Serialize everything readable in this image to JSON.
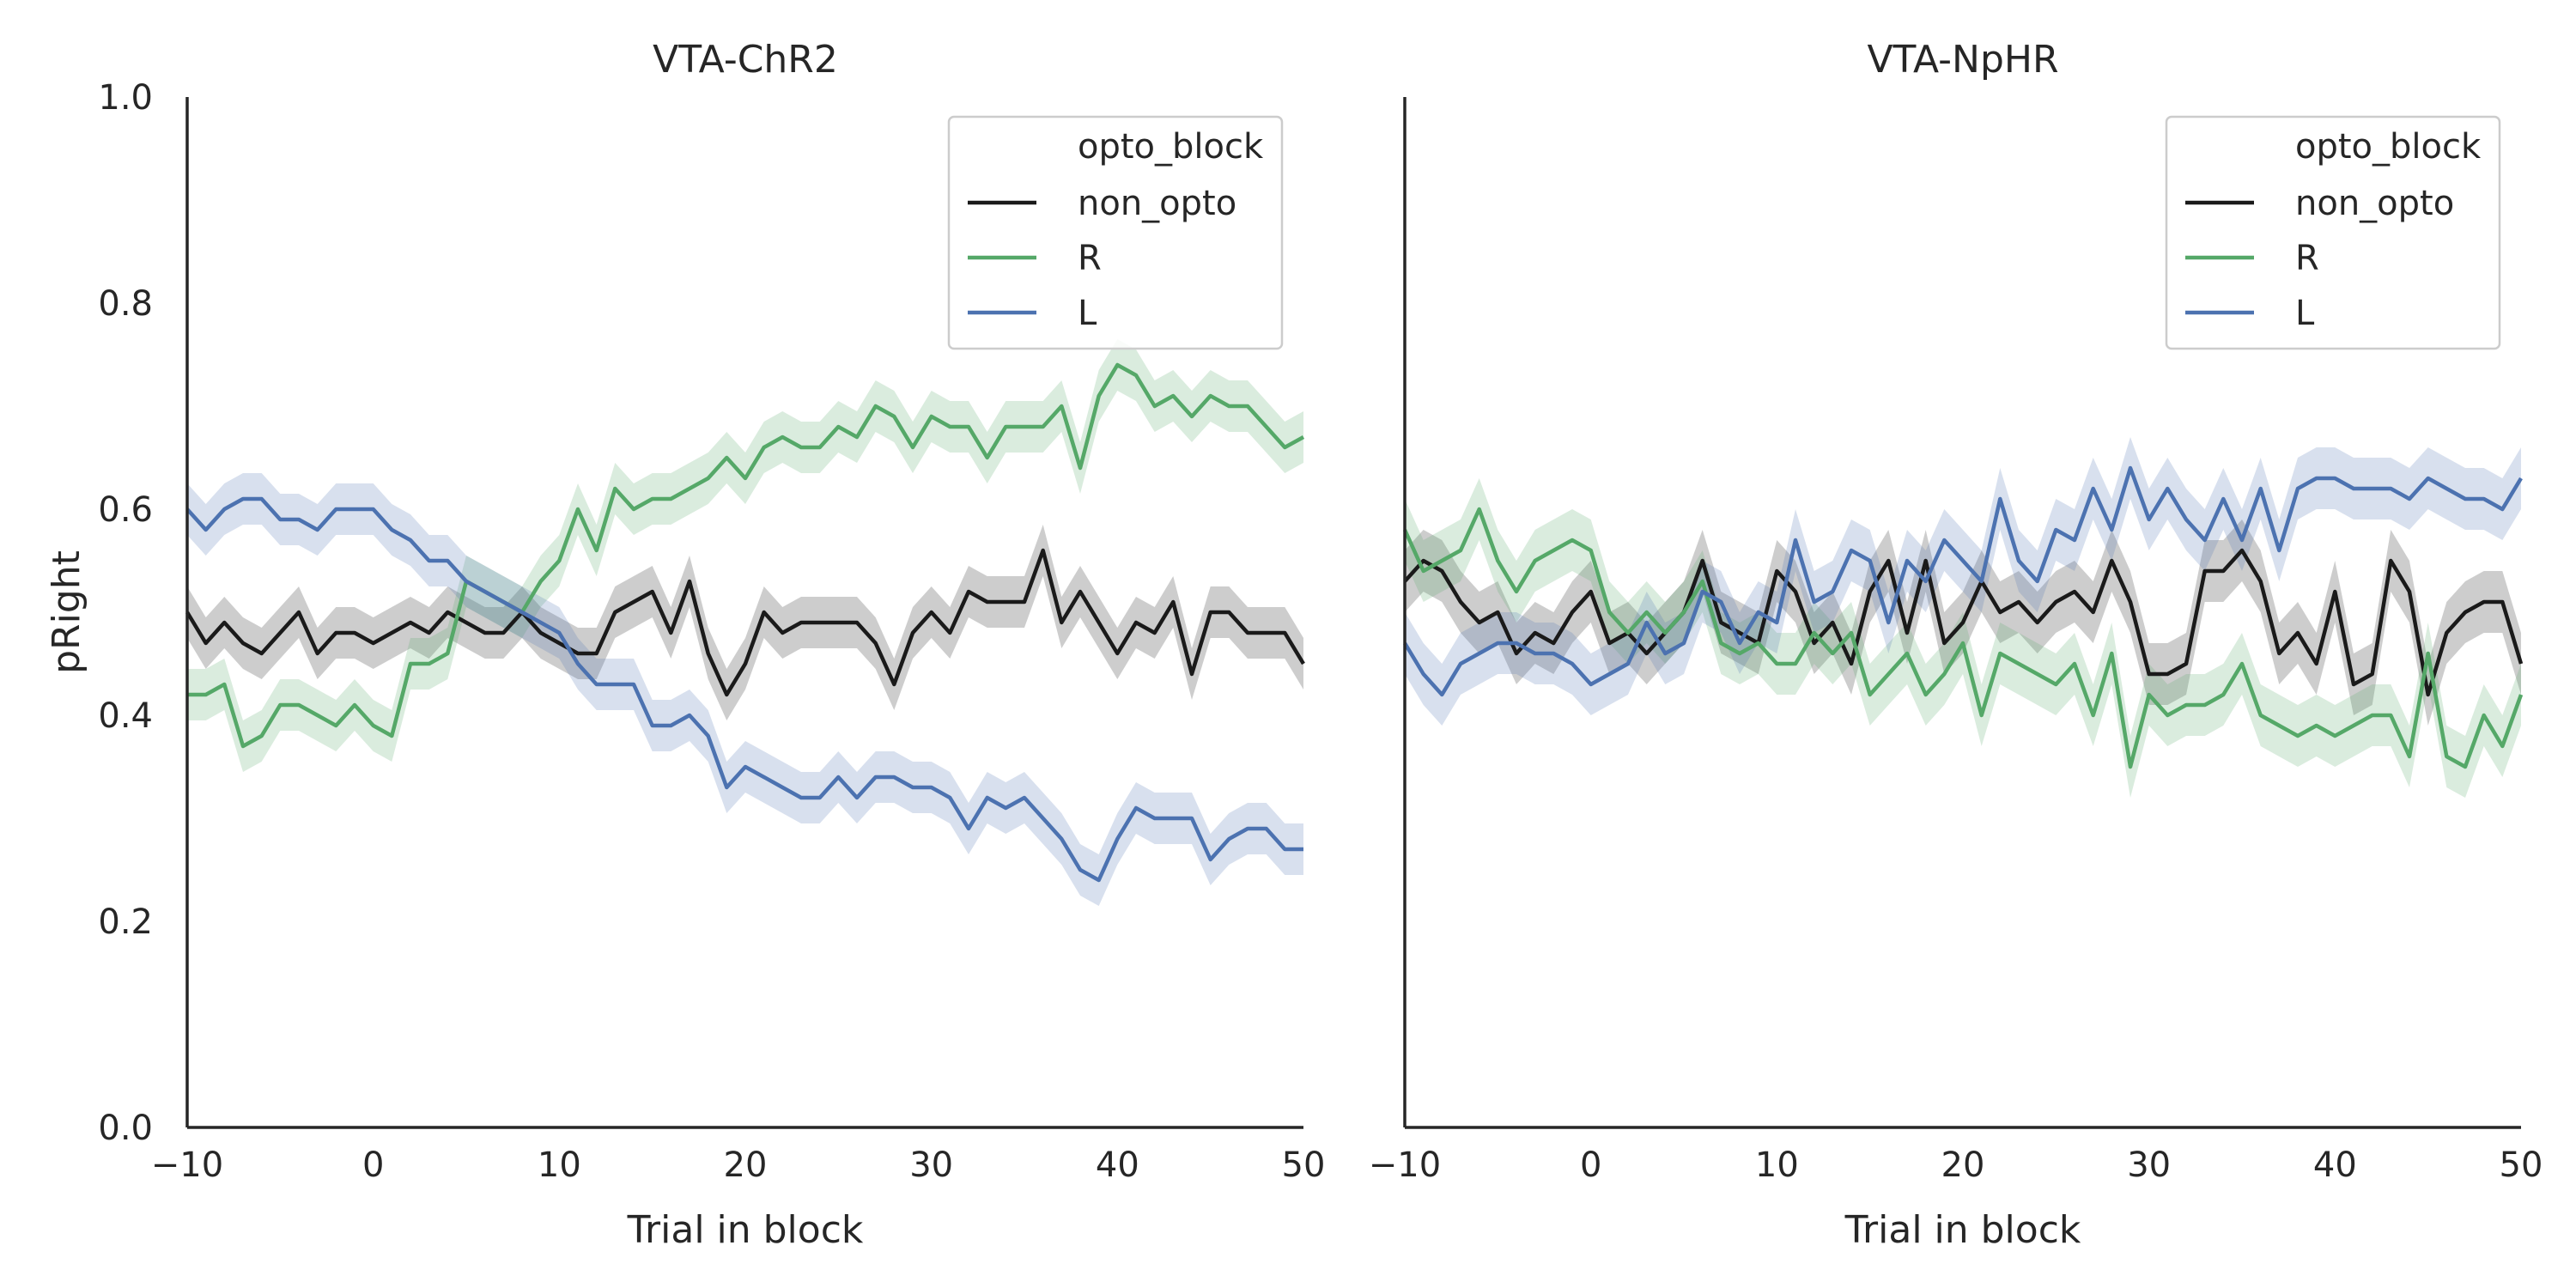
{
  "chart_data": [
    {
      "type": "line",
      "title": "VTA-ChR2",
      "xlabel": "Trial in block",
      "ylabel": "pRight",
      "xlim": [
        -10,
        50
      ],
      "ylim": [
        0,
        1
      ],
      "xticks": [
        "−10",
        "0",
        "10",
        "20",
        "30",
        "40",
        "50"
      ],
      "yticks": [
        "0.0",
        "0.2",
        "0.4",
        "0.6",
        "0.8",
        "1.0"
      ],
      "grid": false,
      "legend": {
        "title": "opto_block",
        "position": "top-right"
      },
      "x": [
        -10,
        -9,
        -8,
        -7,
        -6,
        -5,
        -4,
        -3,
        -2,
        -1,
        0,
        1,
        2,
        3,
        4,
        5,
        6,
        7,
        8,
        9,
        10,
        11,
        12,
        13,
        14,
        15,
        16,
        17,
        18,
        19,
        20,
        21,
        22,
        23,
        24,
        25,
        26,
        27,
        28,
        29,
        30,
        31,
        32,
        33,
        34,
        35,
        36,
        37,
        38,
        39,
        40,
        41,
        42,
        43,
        44,
        45,
        46,
        47,
        48,
        49,
        50
      ],
      "series": [
        {
          "name": "non_opto",
          "color": "#1a1a1a",
          "band": 0.025,
          "values": [
            0.5,
            0.47,
            0.49,
            0.47,
            0.46,
            0.48,
            0.5,
            0.46,
            0.48,
            0.48,
            0.47,
            0.48,
            0.49,
            0.48,
            0.5,
            0.49,
            0.48,
            0.48,
            0.5,
            0.48,
            0.47,
            0.46,
            0.46,
            0.5,
            0.51,
            0.52,
            0.48,
            0.53,
            0.46,
            0.42,
            0.45,
            0.5,
            0.48,
            0.49,
            0.49,
            0.49,
            0.49,
            0.47,
            0.43,
            0.48,
            0.5,
            0.48,
            0.52,
            0.51,
            0.51,
            0.51,
            0.56,
            0.49,
            0.52,
            0.49,
            0.46,
            0.49,
            0.48,
            0.51,
            0.44,
            0.5,
            0.5,
            0.48,
            0.48,
            0.48,
            0.45
          ]
        },
        {
          "name": "R",
          "color": "#55a868",
          "band": 0.025,
          "values": [
            0.42,
            0.42,
            0.43,
            0.37,
            0.38,
            0.41,
            0.41,
            0.4,
            0.39,
            0.41,
            0.39,
            0.38,
            0.45,
            0.45,
            0.46,
            0.53,
            0.52,
            0.51,
            0.5,
            0.53,
            0.55,
            0.6,
            0.56,
            0.62,
            0.6,
            0.61,
            0.61,
            0.62,
            0.63,
            0.65,
            0.63,
            0.66,
            0.67,
            0.66,
            0.66,
            0.68,
            0.67,
            0.7,
            0.69,
            0.66,
            0.69,
            0.68,
            0.68,
            0.65,
            0.68,
            0.68,
            0.68,
            0.7,
            0.64,
            0.71,
            0.74,
            0.73,
            0.7,
            0.71,
            0.69,
            0.71,
            0.7,
            0.7,
            0.68,
            0.66,
            0.67
          ]
        },
        {
          "name": "L",
          "color": "#4c72b0",
          "band": 0.025,
          "values": [
            0.6,
            0.58,
            0.6,
            0.61,
            0.61,
            0.59,
            0.59,
            0.58,
            0.6,
            0.6,
            0.6,
            0.58,
            0.57,
            0.55,
            0.55,
            0.53,
            0.52,
            0.51,
            0.5,
            0.49,
            0.48,
            0.45,
            0.43,
            0.43,
            0.43,
            0.39,
            0.39,
            0.4,
            0.38,
            0.33,
            0.35,
            0.34,
            0.33,
            0.32,
            0.32,
            0.34,
            0.32,
            0.34,
            0.34,
            0.33,
            0.33,
            0.32,
            0.29,
            0.32,
            0.31,
            0.32,
            0.3,
            0.28,
            0.25,
            0.24,
            0.28,
            0.31,
            0.3,
            0.3,
            0.3,
            0.26,
            0.28,
            0.29,
            0.29,
            0.27,
            0.27
          ]
        }
      ]
    },
    {
      "type": "line",
      "title": "VTA-NpHR",
      "xlabel": "Trial in block",
      "ylabel": "",
      "xlim": [
        -10,
        50
      ],
      "ylim": [
        0,
        1
      ],
      "xticks": [
        "−10",
        "0",
        "10",
        "20",
        "30",
        "40",
        "50"
      ],
      "grid": false,
      "legend": {
        "title": "opto_block",
        "position": "top-right"
      },
      "x": [
        -10,
        -9,
        -8,
        -7,
        -6,
        -5,
        -4,
        -3,
        -2,
        -1,
        0,
        1,
        2,
        3,
        4,
        5,
        6,
        7,
        8,
        9,
        10,
        11,
        12,
        13,
        14,
        15,
        16,
        17,
        18,
        19,
        20,
        21,
        22,
        23,
        24,
        25,
        26,
        27,
        28,
        29,
        30,
        31,
        32,
        33,
        34,
        35,
        36,
        37,
        38,
        39,
        40,
        41,
        42,
        43,
        44,
        45,
        46,
        47,
        48,
        49,
        50
      ],
      "series": [
        {
          "name": "non_opto",
          "color": "#1a1a1a",
          "band": 0.03,
          "values": [
            0.53,
            0.55,
            0.54,
            0.51,
            0.49,
            0.5,
            0.46,
            0.48,
            0.47,
            0.5,
            0.52,
            0.47,
            0.48,
            0.46,
            0.48,
            0.5,
            0.55,
            0.49,
            0.48,
            0.47,
            0.54,
            0.52,
            0.47,
            0.49,
            0.45,
            0.52,
            0.55,
            0.48,
            0.55,
            0.47,
            0.49,
            0.53,
            0.5,
            0.51,
            0.49,
            0.51,
            0.52,
            0.5,
            0.55,
            0.51,
            0.44,
            0.44,
            0.45,
            0.54,
            0.54,
            0.56,
            0.53,
            0.46,
            0.48,
            0.45,
            0.52,
            0.43,
            0.44,
            0.55,
            0.52,
            0.42,
            0.48,
            0.5,
            0.51,
            0.51,
            0.45
          ]
        },
        {
          "name": "R",
          "color": "#55a868",
          "band": 0.03,
          "values": [
            0.58,
            0.54,
            0.55,
            0.56,
            0.6,
            0.55,
            0.52,
            0.55,
            0.56,
            0.57,
            0.56,
            0.5,
            0.48,
            0.5,
            0.48,
            0.5,
            0.53,
            0.47,
            0.46,
            0.47,
            0.45,
            0.45,
            0.48,
            0.46,
            0.48,
            0.42,
            0.44,
            0.46,
            0.42,
            0.44,
            0.47,
            0.4,
            0.46,
            0.45,
            0.44,
            0.43,
            0.45,
            0.4,
            0.46,
            0.35,
            0.42,
            0.4,
            0.41,
            0.41,
            0.42,
            0.45,
            0.4,
            0.39,
            0.38,
            0.39,
            0.38,
            0.39,
            0.4,
            0.4,
            0.36,
            0.46,
            0.36,
            0.35,
            0.4,
            0.37,
            0.42
          ]
        },
        {
          "name": "L",
          "color": "#4c72b0",
          "band": 0.03,
          "values": [
            0.47,
            0.44,
            0.42,
            0.45,
            0.46,
            0.47,
            0.47,
            0.46,
            0.46,
            0.45,
            0.43,
            0.44,
            0.45,
            0.49,
            0.46,
            0.47,
            0.52,
            0.51,
            0.47,
            0.5,
            0.49,
            0.57,
            0.51,
            0.52,
            0.56,
            0.55,
            0.49,
            0.55,
            0.53,
            0.57,
            0.55,
            0.53,
            0.61,
            0.55,
            0.53,
            0.58,
            0.57,
            0.62,
            0.58,
            0.64,
            0.59,
            0.62,
            0.59,
            0.57,
            0.61,
            0.57,
            0.62,
            0.56,
            0.62,
            0.63,
            0.63,
            0.62,
            0.62,
            0.62,
            0.61,
            0.63,
            0.62,
            0.61,
            0.61,
            0.6,
            0.63
          ]
        }
      ]
    }
  ]
}
